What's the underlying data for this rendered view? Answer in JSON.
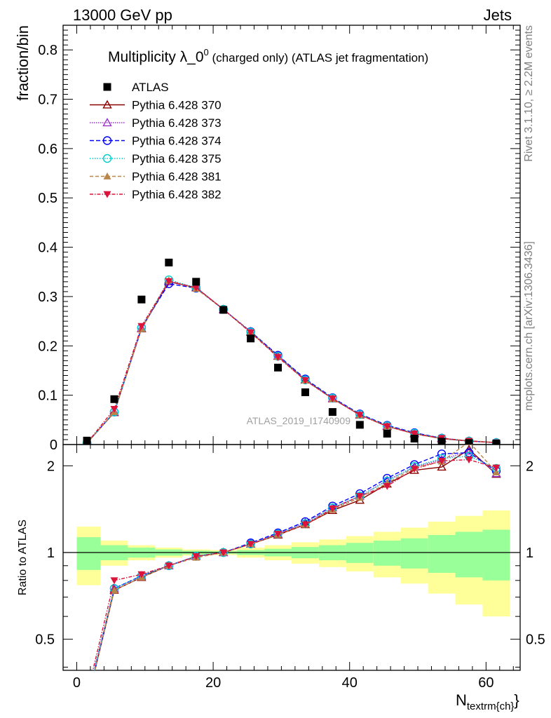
{
  "header": {
    "left": "13000 GeV pp",
    "right": "Jets"
  },
  "side": {
    "rivet": "Rivet 3.1.10, ≥ 2.2M events",
    "mcplots": "mcplots.cern.ch [arXiv:1306.3436]"
  },
  "chart_data": {
    "type": "scatter",
    "title_main": "Multiplicity λ_0",
    "title_sup": "0",
    "title_rest": " (charged only) (ATLAS jet fragmentation)",
    "ylabel": "fraction/bin",
    "ratio_ylabel": "Ratio to ATLAS",
    "xlabel": "N",
    "xlabel_sub": "textrm{ch}",
    "xlabel_close": "}",
    "watermark": "ATLAS_2019_I1740909",
    "xlim": [
      -2,
      65
    ],
    "ylim": [
      0,
      0.85
    ],
    "ratio_ylim": [
      0.39,
      2.37
    ],
    "x_ticks": [
      "0",
      "20",
      "40",
      "60"
    ],
    "y_ticks": [
      "0",
      "0.1",
      "0.2",
      "0.3",
      "0.4",
      "0.5",
      "0.6",
      "0.7",
      "0.8"
    ],
    "ratio_ticks": [
      "0.5",
      "1",
      "2"
    ],
    "bins": [
      [
        0,
        3.5
      ],
      [
        3.5,
        7.5
      ],
      [
        7.5,
        11.5
      ],
      [
        11.5,
        15.5
      ],
      [
        15.5,
        19.5
      ],
      [
        19.5,
        23.5
      ],
      [
        23.5,
        27.5
      ],
      [
        27.5,
        31.5
      ],
      [
        31.5,
        35.5
      ],
      [
        35.5,
        39.5
      ],
      [
        39.5,
        43.5
      ],
      [
        43.5,
        47.5
      ],
      [
        47.5,
        51.5
      ],
      [
        51.5,
        55.5
      ],
      [
        55.5,
        59.5
      ],
      [
        59.5,
        63.5
      ]
    ],
    "x": [
      1.5,
      5.5,
      9.5,
      13.5,
      17.5,
      21.5,
      25.5,
      29.5,
      33.5,
      37.5,
      41.5,
      45.5,
      49.5,
      53.5,
      57.5,
      61.5
    ],
    "data": {
      "name": "ATLAS",
      "values": [
        0.008,
        0.092,
        0.294,
        0.369,
        0.33,
        0.273,
        0.215,
        0.156,
        0.106,
        0.066,
        0.04,
        0.022,
        0.012,
        0.006,
        0.003,
        0.002
      ],
      "band_inner": [
        0.13,
        0.06,
        0.04,
        0.025,
        0.015,
        0.01,
        0.02,
        0.03,
        0.045,
        0.06,
        0.08,
        0.1,
        0.12,
        0.15,
        0.18,
        0.2
      ],
      "band_outer": [
        0.23,
        0.1,
        0.06,
        0.04,
        0.025,
        0.02,
        0.04,
        0.06,
        0.085,
        0.11,
        0.14,
        0.18,
        0.22,
        0.28,
        0.34,
        0.4
      ]
    },
    "series": [
      {
        "name": "Pythia 6.428 370",
        "color": "#8b0000",
        "marker": "triangle-open",
        "dash": "",
        "values": [
          0.003,
          0.065,
          0.235,
          0.33,
          0.318,
          0.274,
          0.228,
          0.179,
          0.131,
          0.093,
          0.06,
          0.037,
          0.022,
          0.012,
          0.007,
          0.004
        ],
        "ratio": [
          0.3,
          0.74,
          0.82,
          0.9,
          0.97,
          1.0,
          1.07,
          1.15,
          1.25,
          1.4,
          1.52,
          1.73,
          1.93,
          1.98,
          2.28,
          1.87
        ]
      },
      {
        "name": "Pythia 6.428 373",
        "color": "#9932cc",
        "marker": "triangle-open",
        "dash": "1.5,1.5",
        "values": [
          0.003,
          0.066,
          0.236,
          0.33,
          0.319,
          0.274,
          0.229,
          0.18,
          0.132,
          0.094,
          0.061,
          0.038,
          0.023,
          0.013,
          0.007,
          0.004
        ],
        "ratio": [
          0.31,
          0.75,
          0.83,
          0.9,
          0.97,
          1.0,
          1.07,
          1.16,
          1.27,
          1.43,
          1.57,
          1.78,
          1.98,
          2.1,
          2.25,
          1.88
        ]
      },
      {
        "name": "Pythia 6.428 374",
        "color": "#0000ff",
        "marker": "circle-open",
        "dash": "6,3",
        "values": [
          0.003,
          0.066,
          0.237,
          0.326,
          0.317,
          0.274,
          0.229,
          0.181,
          0.133,
          0.095,
          0.062,
          0.039,
          0.024,
          0.013,
          0.007,
          0.004
        ],
        "ratio": [
          0.3,
          0.75,
          0.83,
          0.9,
          0.97,
          1.0,
          1.08,
          1.17,
          1.28,
          1.45,
          1.6,
          1.81,
          2.02,
          2.2,
          2.22,
          1.92
        ]
      },
      {
        "name": "Pythia 6.428 375",
        "color": "#00cdcd",
        "marker": "circle-open",
        "dash": "1.5,2",
        "values": [
          0.003,
          0.066,
          0.237,
          0.334,
          0.318,
          0.274,
          0.228,
          0.179,
          0.131,
          0.094,
          0.061,
          0.038,
          0.023,
          0.013,
          0.007,
          0.004
        ],
        "ratio": [
          0.31,
          0.75,
          0.83,
          0.9,
          0.97,
          1.0,
          1.07,
          1.16,
          1.26,
          1.43,
          1.57,
          1.77,
          1.99,
          2.12,
          2.16,
          1.96
        ]
      },
      {
        "name": "Pythia 6.428 381",
        "color": "#b8864b",
        "marker": "triangle-filled",
        "dash": "5,3",
        "values": [
          0.003,
          0.066,
          0.235,
          0.333,
          0.316,
          0.274,
          0.228,
          0.178,
          0.13,
          0.093,
          0.06,
          0.037,
          0.022,
          0.012,
          0.008,
          0.004
        ],
        "ratio": [
          0.3,
          0.74,
          0.82,
          0.9,
          0.96,
          1.0,
          1.07,
          1.15,
          1.25,
          1.41,
          1.55,
          1.74,
          1.97,
          2.07,
          2.42,
          1.9
        ]
      },
      {
        "name": "Pythia 6.428 382",
        "color": "#dc143c",
        "marker": "triangle-down-filled",
        "dash": "5,2,1.5,2",
        "values": [
          0.003,
          0.072,
          0.24,
          0.331,
          0.318,
          0.274,
          0.227,
          0.177,
          0.13,
          0.093,
          0.06,
          0.037,
          0.022,
          0.013,
          0.007,
          0.004
        ],
        "ratio": [
          0.32,
          0.8,
          0.84,
          0.9,
          0.97,
          1.0,
          1.07,
          1.16,
          1.25,
          1.42,
          1.57,
          1.7,
          1.95,
          2.08,
          2.1,
          1.97
        ]
      }
    ]
  }
}
